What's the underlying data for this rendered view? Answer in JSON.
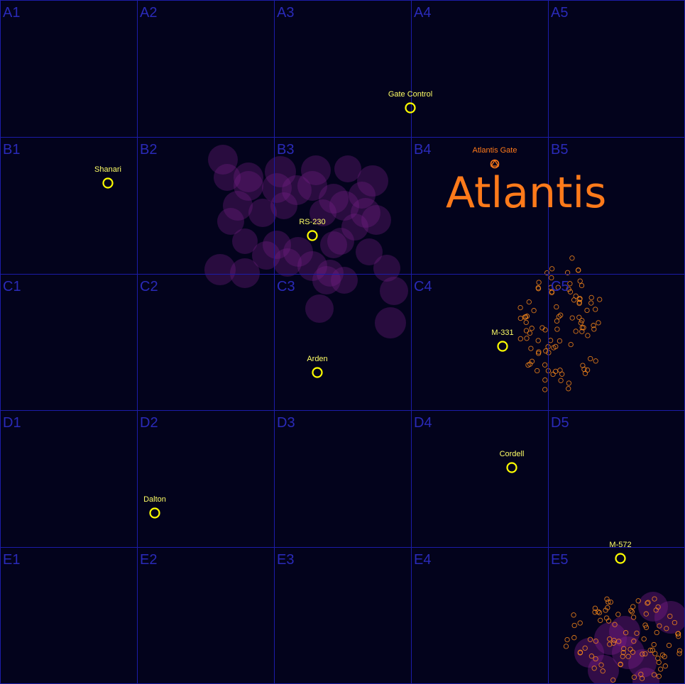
{
  "grid": {
    "rows": [
      "A",
      "B",
      "C",
      "D",
      "E"
    ],
    "cols": [
      "1",
      "2",
      "3",
      "4",
      "5"
    ],
    "line_color": "#1c1ca8",
    "label_color": "#2a2ab8",
    "background": "#03031c"
  },
  "region_label": "Atlantis",
  "colors": {
    "system_ring": "#ffff00",
    "system_text": "#ffff66",
    "gate": "#ff7a1a",
    "nebula": "#7a1f8a",
    "asteroid": "#ff8c1a"
  },
  "systems": [
    {
      "name": "Gate Control",
      "icon": "system-ring-icon"
    },
    {
      "name": "Shanari",
      "icon": "system-ring-icon"
    },
    {
      "name": "RS-230",
      "icon": "system-ring-icon"
    },
    {
      "name": "M-331",
      "icon": "system-ring-icon"
    },
    {
      "name": "Arden",
      "icon": "system-ring-icon"
    },
    {
      "name": "Cordell",
      "icon": "system-ring-icon"
    },
    {
      "name": "Dalton",
      "icon": "system-ring-icon"
    },
    {
      "name": "M-572",
      "icon": "system-ring-icon"
    }
  ],
  "gates": [
    {
      "name": "Atlantis Gate",
      "icon": "gate-icon"
    }
  ]
}
